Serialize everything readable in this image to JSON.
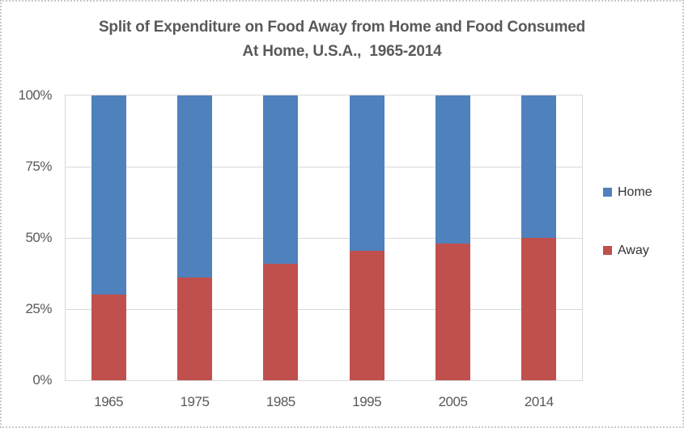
{
  "title": {
    "line1": "Split of Expenditure on Food Away from Home and Food Consumed",
    "line2": "At Home, U.S.A.,  1965-2014"
  },
  "chart_data": {
    "type": "bar",
    "stacked": true,
    "title": "Split of Expenditure on Food Away from Home and Food Consumed At Home, U.S.A., 1965-2014",
    "categories": [
      "1965",
      "1975",
      "1985",
      "1995",
      "2005",
      "2014"
    ],
    "series": [
      {
        "name": "Home",
        "color": "#4F81BD",
        "values": [
          70,
          64,
          59,
          54.5,
          52,
          50
        ]
      },
      {
        "name": "Away",
        "color": "#C0504D",
        "values": [
          30,
          36,
          41,
          45.5,
          48,
          50
        ]
      }
    ],
    "units": "%",
    "ylim": [
      0,
      100
    ],
    "y_ticks": [
      {
        "label": "100%",
        "value": 100
      },
      {
        "label": "75%",
        "value": 75
      },
      {
        "label": "50%",
        "value": 50
      },
      {
        "label": "25%",
        "value": 25
      },
      {
        "label": "0%",
        "value": 0
      }
    ],
    "grid": true,
    "legend_position": "right",
    "stack_order_note": "Away (red) at bottom, Home (blue) on top"
  },
  "colors": {
    "home": "#4F81BD",
    "away": "#C0504D",
    "gridline": "#D9D9D9",
    "axis_text": "#595959",
    "title_text": "#595959",
    "legend_text": "#333333",
    "frame_border": "#C9C9C9"
  }
}
